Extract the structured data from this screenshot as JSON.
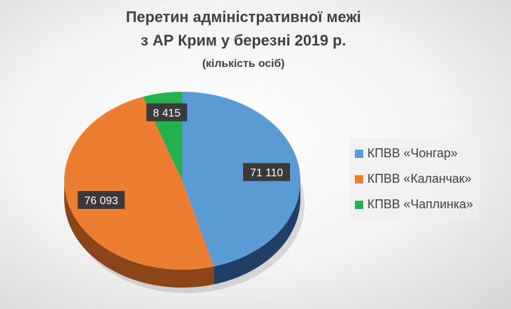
{
  "chart_data": {
    "type": "pie",
    "title": [
      "Перетин адміністративної межі",
      "з АР Крим у березні 2019 р."
    ],
    "subtitle": "(кількість осіб)",
    "legend_position": "right",
    "series": [
      {
        "name": "КПВВ «Чонгар»",
        "value": 71110,
        "label": "71 110",
        "color": "#5b9bd5",
        "side": "#1f3f66"
      },
      {
        "name": "КПВВ «Каланчак»",
        "value": 76093,
        "label": "76 093",
        "color": "#ed7d31",
        "side": "#8c4516"
      },
      {
        "name": "КПВВ «Чаплинка»",
        "value": 8415,
        "label": "8 415",
        "color": "#22b14c",
        "side": "#13662b"
      }
    ]
  }
}
